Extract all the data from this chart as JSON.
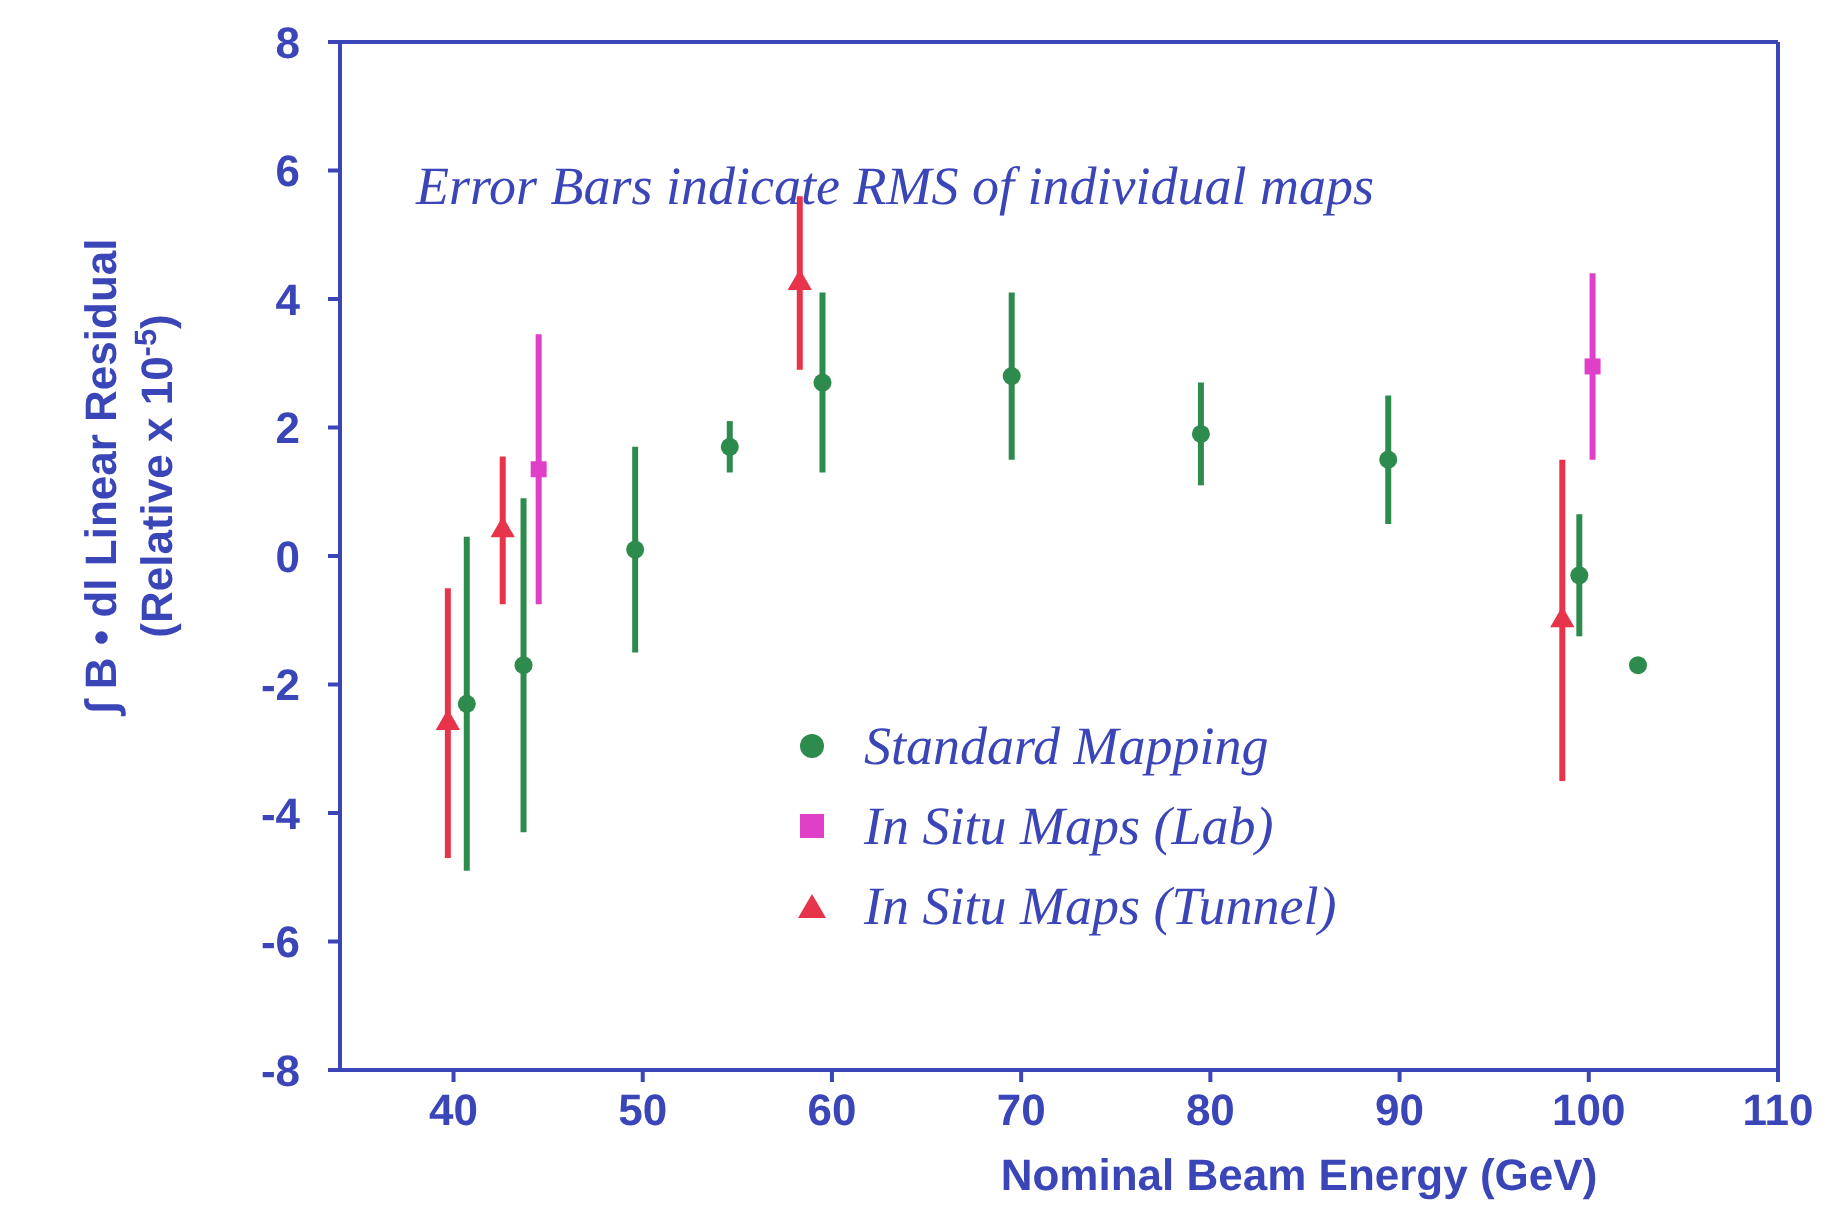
{
  "chart_data": {
    "type": "scatter",
    "ylabel": "∫ B • dl  Linear Residual\n(Relative x 10$^{-5}$)",
    "xlabel": "Nominal Beam Energy (GeV)",
    "annotations": [
      "Error Bars indicate RMS of individual maps"
    ],
    "xlim": [
      34,
      110
    ],
    "xticks": [
      40,
      50,
      60,
      70,
      80,
      90,
      100,
      110
    ],
    "ylim": [
      -8,
      8
    ],
    "yticks": [
      -8,
      -6,
      -4,
      -2,
      0,
      2,
      4,
      6,
      8
    ],
    "legend": "bottom",
    "series": [
      {
        "name": "Standard Mapping",
        "color": "#2e8b4e",
        "marker": "circle",
        "x": [
          40.7,
          43.7,
          49.6,
          54.6,
          59.5,
          69.5,
          79.5,
          89.4,
          99.5,
          102.6
        ],
        "values": [
          -2.3,
          -1.7,
          0.1,
          1.7,
          2.7,
          2.8,
          1.9,
          1.5,
          -0.3,
          -1.7
        ],
        "errors": [
          2.6,
          2.6,
          1.6,
          0.4,
          1.4,
          1.3,
          0.8,
          1.0,
          0.95,
          null
        ]
      },
      {
        "name": "In Situ Maps (Lab)",
        "color": "#e040c8",
        "marker": "square",
        "x": [
          44.5,
          100.2
        ],
        "values": [
          1.35,
          2.95
        ],
        "errors": [
          2.1,
          1.45
        ]
      },
      {
        "name": "In Situ Maps (Tunnel)",
        "color": "#e8344a",
        "marker": "triangle",
        "x": [
          39.7,
          42.6,
          58.3,
          98.6
        ],
        "values": [
          -2.6,
          0.4,
          4.25,
          -1.0
        ],
        "errors": [
          2.1,
          1.15,
          1.35,
          2.5
        ]
      }
    ]
  }
}
